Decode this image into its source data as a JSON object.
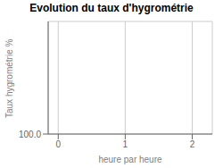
{
  "chart_data": {
    "type": "line",
    "title": "Evolution du taux d'hygrométrie",
    "xlabel": "heure par heure",
    "ylabel": "Taux hygrométrie %",
    "x": [],
    "values": [],
    "xlim": [
      -0.15,
      2.3
    ],
    "xticks": [
      0,
      1,
      2
    ],
    "ylim": [
      100.0,
      200.0
    ],
    "yticks": [
      {
        "value": 100.0,
        "label": "100.0"
      }
    ],
    "grid": true
  }
}
